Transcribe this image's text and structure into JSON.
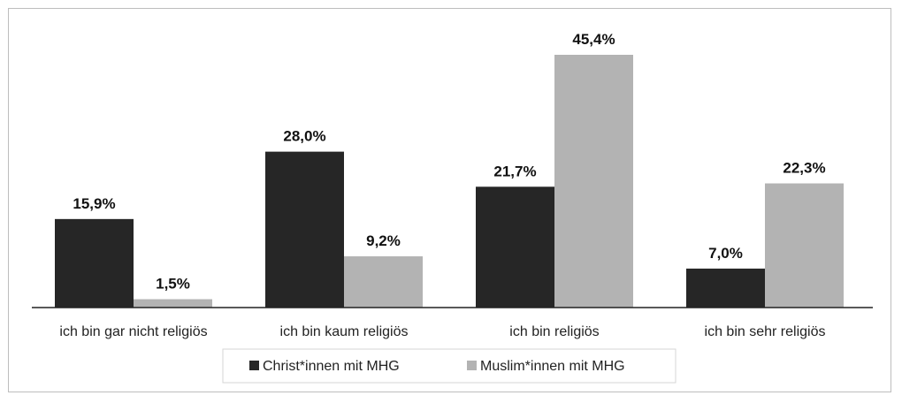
{
  "chart_data": {
    "type": "bar",
    "categories": [
      "ich bin gar nicht religiös",
      "ich bin kaum religiös",
      "ich bin religiös",
      "ich bin sehr religiös"
    ],
    "series": [
      {
        "name": "Christ*innen mit MHG",
        "values": [
          15.9,
          28.0,
          21.7,
          7.0
        ],
        "labels": [
          "15,9%",
          "28,0%",
          "21,7%",
          "7,0%"
        ],
        "color": "#262626"
      },
      {
        "name": "Muslim*innen mit MHG",
        "values": [
          1.5,
          9.2,
          45.4,
          22.3
        ],
        "labels": [
          "1,5%",
          "9,2%",
          "45,4%",
          "22,3%"
        ],
        "color": "#b3b3b3"
      }
    ],
    "ylim": [
      0,
      50
    ],
    "grid": false,
    "legend_position": "bottom"
  }
}
